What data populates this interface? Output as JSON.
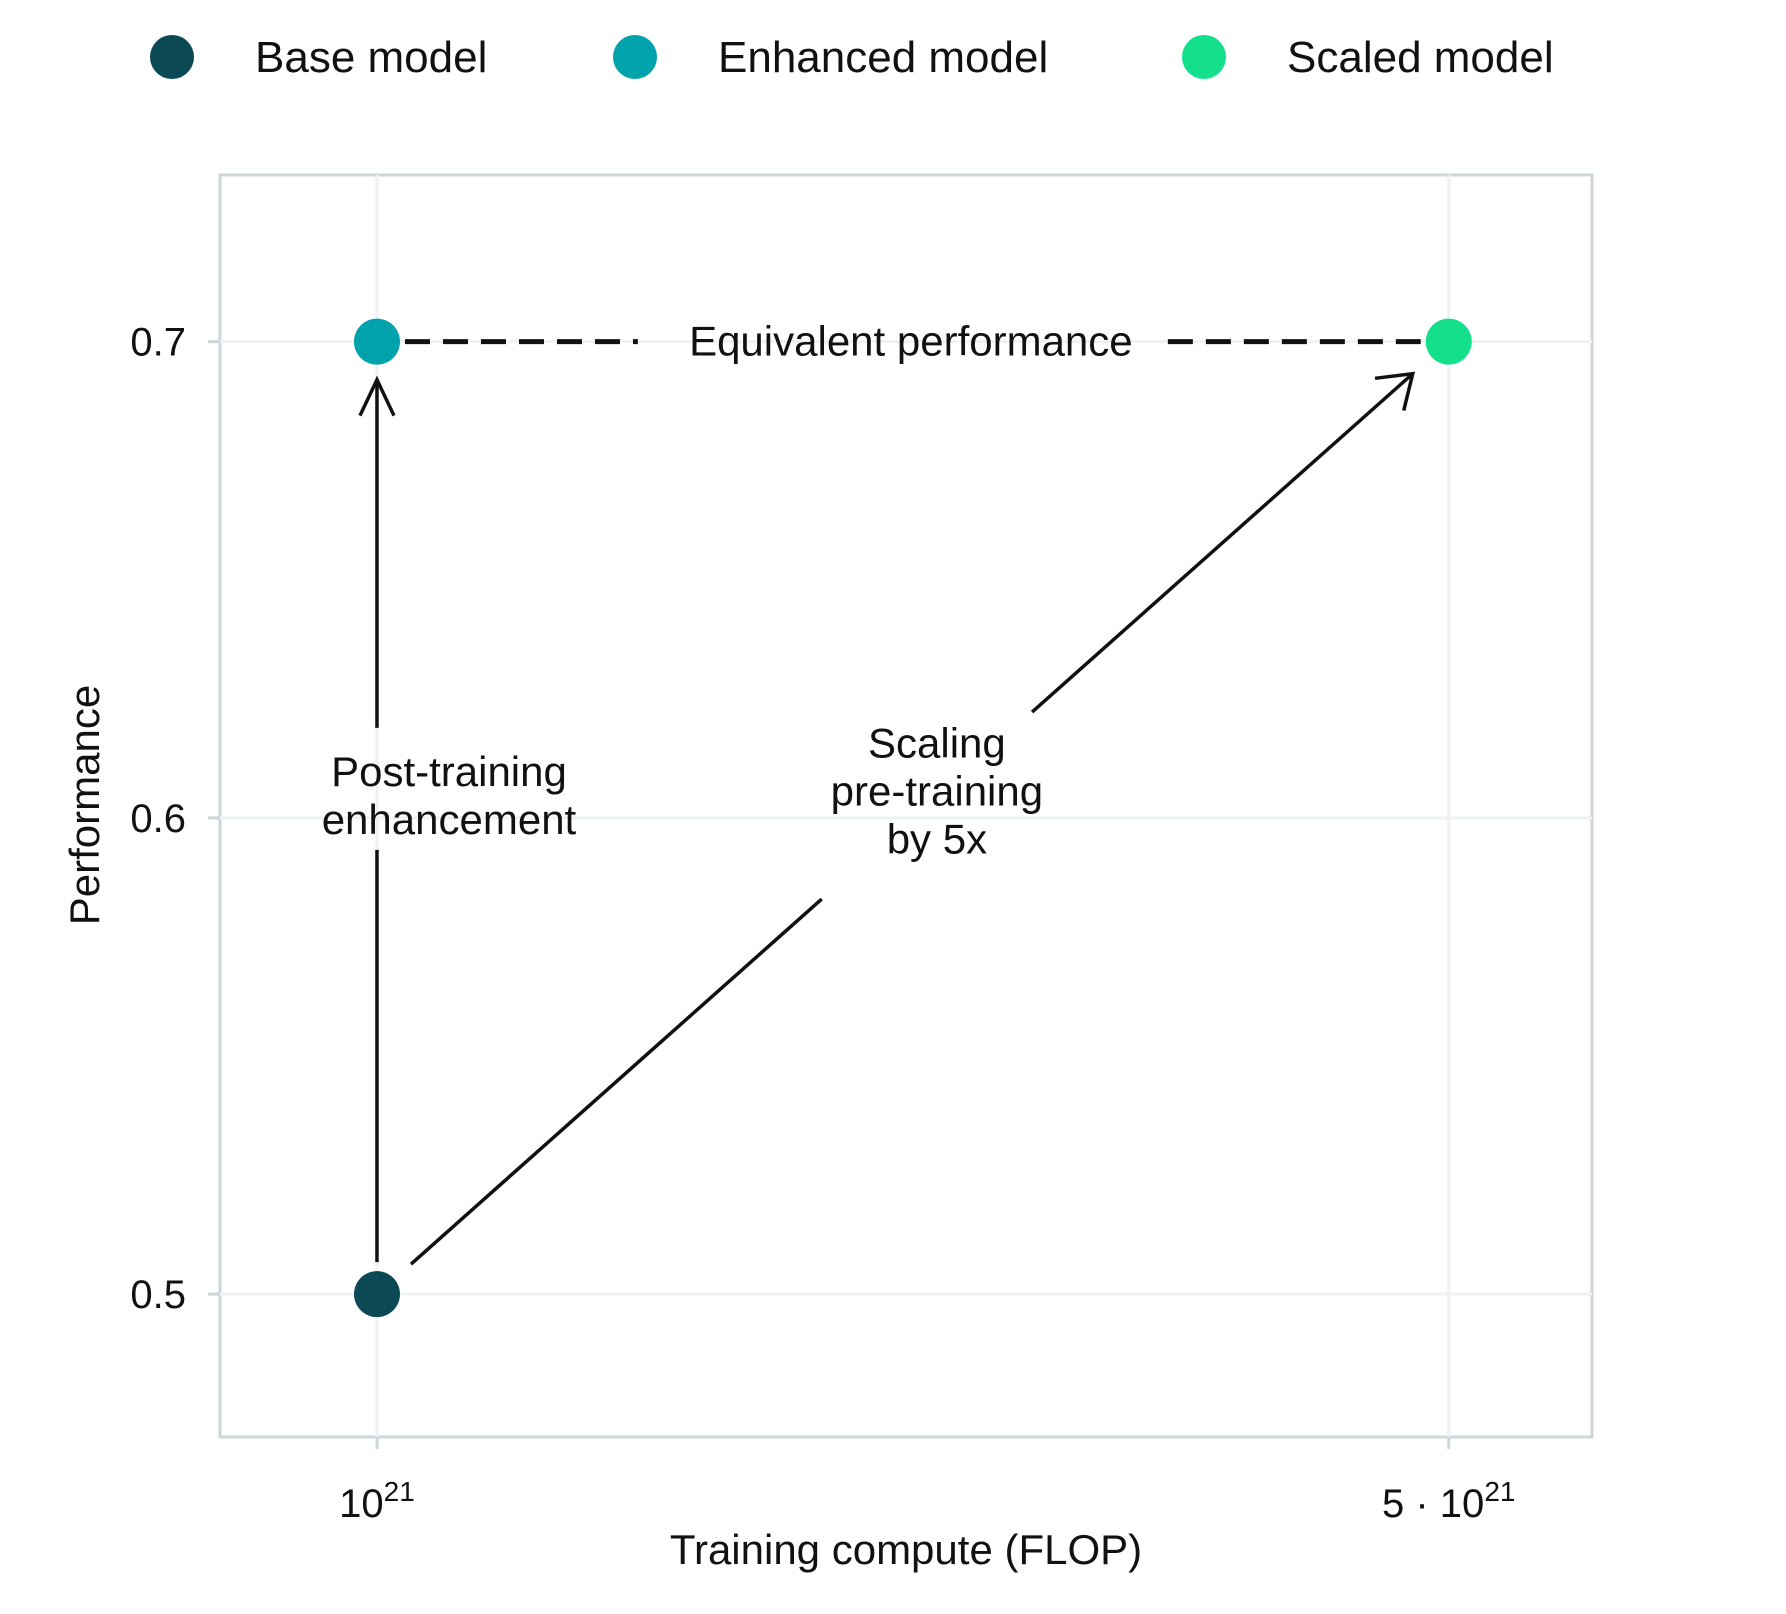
{
  "chart_data": {
    "type": "scatter",
    "title": "",
    "xlabel": "Training compute (FLOP)",
    "ylabel": "Performance",
    "xscale": "log",
    "xlim": [
      7.9e+20,
      6.2e+21
    ],
    "ylim": [
      0.47,
      0.735
    ],
    "grid": true,
    "legend_position": "top",
    "x_ticks": [
      {
        "value": 1e+21,
        "base": "10",
        "exponent": "21"
      },
      {
        "value": 5e+21,
        "base": "5 · 10",
        "exponent": "21"
      }
    ],
    "y_ticks": [
      {
        "value": 0.5,
        "label": "0.5"
      },
      {
        "value": 0.6,
        "label": "0.6"
      },
      {
        "value": 0.7,
        "label": "0.7"
      }
    ],
    "series": [
      {
        "name": "Base model",
        "color": "#0b4a55",
        "x": 1e+21,
        "y": 0.5
      },
      {
        "name": "Enhanced model",
        "color": "#00a2ab",
        "x": 1e+21,
        "y": 0.7
      },
      {
        "name": "Scaled model",
        "color": "#14e08b",
        "x": 5e+21,
        "y": 0.7
      }
    ],
    "annotations": [
      {
        "name": "post-training",
        "type": "arrow",
        "from": [
          1e+21,
          0.5
        ],
        "to": [
          1e+21,
          0.7
        ],
        "lines": [
          "Post-training",
          "enhancement"
        ]
      },
      {
        "name": "scaling",
        "type": "arrow",
        "from": [
          1e+21,
          0.5
        ],
        "to": [
          5e+21,
          0.7
        ],
        "lines": [
          "Scaling",
          "pre-training",
          "by 5x"
        ]
      },
      {
        "name": "equivalent",
        "type": "dashed-line",
        "from": [
          1e+21,
          0.7
        ],
        "to": [
          5e+21,
          0.7
        ],
        "lines": [
          "Equivalent performance"
        ]
      }
    ]
  },
  "colors": {
    "axis": "#cdd6d8",
    "grid": "#eef2f2",
    "arrow": "#111111"
  }
}
